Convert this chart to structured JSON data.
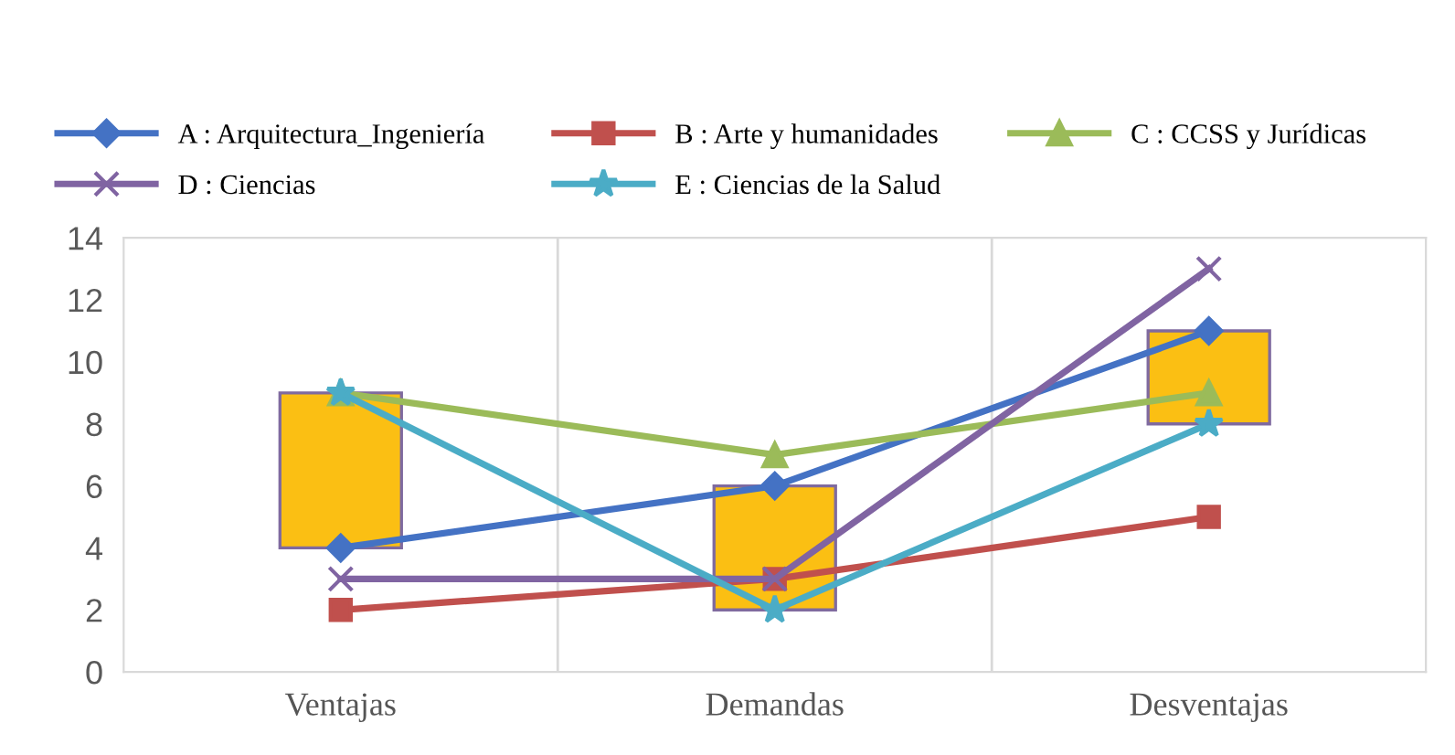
{
  "chart_data": {
    "type": "line",
    "categories": [
      "Ventajas",
      "Demandas",
      "Desventajas"
    ],
    "series": [
      {
        "name": "A : Arquitectura_Ingeniería",
        "color": "#4472c4",
        "values": [
          4,
          6,
          11
        ],
        "marker": "diamond"
      },
      {
        "name": "B : Arte y humanidades",
        "color": "#c0504d",
        "values": [
          2,
          3,
          5
        ],
        "marker": "square"
      },
      {
        "name": "C : CCSS y Jurídicas",
        "color": "#9bbb59",
        "values": [
          9,
          7,
          9
        ],
        "marker": "triangle"
      },
      {
        "name": "D : Ciencias",
        "color": "#8064a2",
        "values": [
          3,
          3,
          13
        ],
        "marker": "cross"
      },
      {
        "name": "E : Ciencias de la Salud",
        "color": "#4bacc6",
        "values": [
          9,
          2,
          8
        ],
        "marker": "star"
      },
      {
        "type": "bar",
        "color": "#fbbf13",
        "base": [
          4,
          2,
          8
        ],
        "values": [
          5,
          4,
          3
        ]
      }
    ],
    "ylim": [
      0,
      14
    ],
    "yticks": [
      0,
      2,
      4,
      6,
      8,
      10,
      12,
      14
    ],
    "grid": "x",
    "legend": "top"
  }
}
